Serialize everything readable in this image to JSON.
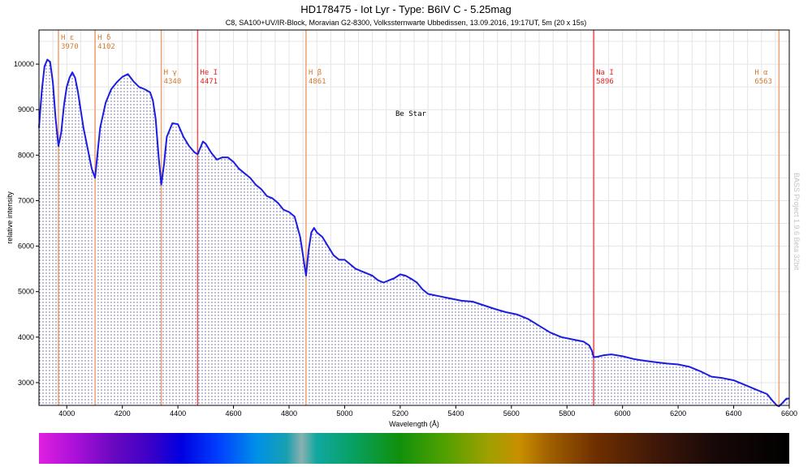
{
  "chart_data": {
    "type": "line",
    "title": "HD178475 -  Iot Lyr - Type: B6IV C - 5.25mag",
    "subtitle": "C8, SA100+UV/IR-Block, Moravian G2-8300, Volkssternwarte Ubbedissen, 13.09.2016, 19:17UT, 5m (20 x 15s)",
    "xlabel": "Wavelength (Å)",
    "ylabel": "relative intensity",
    "watermark": "BASS Project 1.9.6 Beta 32bit",
    "annotation": "Be Star",
    "xlim": [
      3900,
      6600
    ],
    "ylim": [
      2500,
      10750
    ],
    "grid": true,
    "x_ticks": [
      4000,
      4200,
      4400,
      4600,
      4800,
      5000,
      5200,
      5400,
      5600,
      5800,
      6000,
      6200,
      6400,
      6600
    ],
    "y_ticks": [
      3000,
      4000,
      5000,
      6000,
      7000,
      8000,
      9000,
      10000
    ],
    "series": [
      {
        "color": "#1c1ce0",
        "x": [
          3900,
          3910,
          3920,
          3930,
          3940,
          3950,
          3960,
          3970,
          3980,
          3990,
          4000,
          4010,
          4020,
          4030,
          4040,
          4050,
          4060,
          4070,
          4080,
          4090,
          4102,
          4110,
          4120,
          4140,
          4160,
          4180,
          4200,
          4220,
          4240,
          4260,
          4280,
          4300,
          4310,
          4320,
          4330,
          4340,
          4350,
          4360,
          4380,
          4400,
          4420,
          4440,
          4460,
          4471,
          4480,
          4490,
          4500,
          4520,
          4540,
          4560,
          4580,
          4600,
          4620,
          4640,
          4660,
          4680,
          4700,
          4720,
          4740,
          4760,
          4780,
          4800,
          4820,
          4840,
          4850,
          4861,
          4870,
          4880,
          4890,
          4900,
          4920,
          4940,
          4960,
          4980,
          5000,
          5020,
          5040,
          5060,
          5080,
          5100,
          5120,
          5140,
          5160,
          5180,
          5200,
          5220,
          5240,
          5260,
          5280,
          5300,
          5340,
          5380,
          5420,
          5460,
          5500,
          5540,
          5580,
          5620,
          5660,
          5700,
          5740,
          5780,
          5820,
          5860,
          5880,
          5890,
          5896,
          5910,
          5930,
          5960,
          6000,
          6040,
          6080,
          6120,
          6160,
          6200,
          6240,
          6280,
          6320,
          6360,
          6400,
          6440,
          6480,
          6520,
          6540,
          6555,
          6563,
          6575,
          6590,
          6600
        ],
        "values": [
          8600,
          9400,
          9950,
          10100,
          10050,
          9600,
          8800,
          8200,
          8500,
          9100,
          9500,
          9700,
          9820,
          9700,
          9400,
          9000,
          8600,
          8300,
          8000,
          7700,
          7500,
          8000,
          8600,
          9150,
          9450,
          9600,
          9720,
          9780,
          9620,
          9500,
          9450,
          9380,
          9200,
          8800,
          8000,
          7350,
          7800,
          8400,
          8700,
          8680,
          8400,
          8200,
          8060,
          8020,
          8150,
          8300,
          8250,
          8050,
          7900,
          7950,
          7950,
          7850,
          7700,
          7600,
          7500,
          7350,
          7250,
          7100,
          7050,
          6950,
          6800,
          6750,
          6650,
          6200,
          5800,
          5350,
          5900,
          6300,
          6400,
          6300,
          6200,
          6000,
          5800,
          5700,
          5700,
          5600,
          5500,
          5450,
          5400,
          5350,
          5250,
          5200,
          5250,
          5300,
          5380,
          5350,
          5280,
          5200,
          5050,
          4950,
          4900,
          4850,
          4800,
          4780,
          4700,
          4620,
          4550,
          4500,
          4400,
          4250,
          4100,
          4000,
          3950,
          3900,
          3820,
          3700,
          3560,
          3570,
          3600,
          3620,
          3580,
          3520,
          3480,
          3450,
          3420,
          3400,
          3350,
          3250,
          3130,
          3100,
          3050,
          2950,
          2850,
          2750,
          2600,
          2500,
          2480,
          2550,
          2650,
          2650
        ]
      }
    ],
    "lines": [
      {
        "label": "H ε",
        "value": "3970",
        "x": 3970,
        "color": "#f0a070",
        "text_color": "#d07a30"
      },
      {
        "label": "H δ",
        "value": "4102",
        "x": 4102,
        "color": "#f0a070",
        "text_color": "#d07a30"
      },
      {
        "label": "H γ",
        "value": "4340",
        "x": 4340,
        "color": "#f0a070",
        "text_color": "#d07a30"
      },
      {
        "label": "He I",
        "value": "4471",
        "x": 4471,
        "color": "#e85050",
        "text_color": "#e02020"
      },
      {
        "label": "H β",
        "value": "4861",
        "x": 4861,
        "color": "#f0a070",
        "text_color": "#d07a30"
      },
      {
        "label": "Na I",
        "value": "5896",
        "x": 5896,
        "color": "#e85050",
        "text_color": "#e02020"
      },
      {
        "label": "H α",
        "value": "6563",
        "x": 6563,
        "color": "#f0a070",
        "text_color": "#d07a30"
      }
    ]
  }
}
